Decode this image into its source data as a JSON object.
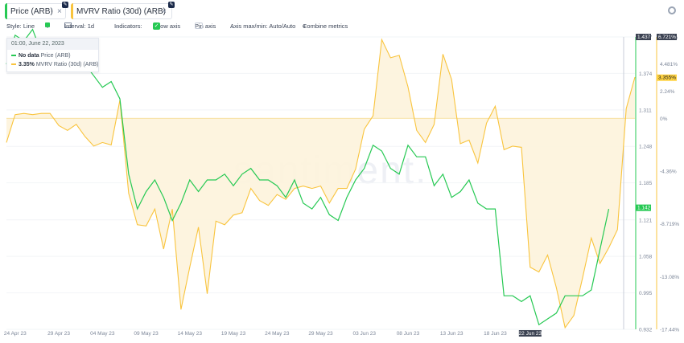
{
  "tabs": [
    {
      "label": "Price (ARB)",
      "accent": "#26c953",
      "dots": "⋮",
      "close": "×"
    },
    {
      "label": "MVRV Ratio (30d) (ARB)",
      "accent": "#f9c43d",
      "dots": "⋮",
      "close": "×"
    }
  ],
  "toolbar": {
    "style_label": "Style: Line",
    "interval_label": "Interval: 1d",
    "indicators_label": "Indicators:",
    "show_axis_label": "Show axis",
    "pin_axis_label": "Pin axis",
    "axis_maxmin_label": "Axis max/min: Auto/Auto",
    "combine_label": "Combine metrics",
    "plus": "+",
    "chevron": "⌄",
    "check": "✓"
  },
  "tooltip": {
    "date": "01:00, June 22, 2023",
    "rows": [
      {
        "value": "No data",
        "label": "Price (ARB)",
        "color": "#26c953"
      },
      {
        "value": "3.35%",
        "label": "MVRV Ratio (30d) (ARB)",
        "color": "#f9c43d"
      }
    ]
  },
  "watermark": "santiment.",
  "colors": {
    "price": "#26c953",
    "mvrv": "#f9c43d",
    "mvrv_fill": "#fdf3dc",
    "badge_dark": "#3b4252",
    "badge_mvrv": "#ffd23f"
  },
  "chart_data": {
    "type": "line",
    "x_ticks": [
      "24 Apr 23",
      "29 Apr 23",
      "04 May 23",
      "09 May 23",
      "14 May 23",
      "19 May 23",
      "24 May 23",
      "29 May 23",
      "03 Jun 23",
      "08 Jun 23",
      "13 Jun 23",
      "18 Jun 23",
      "22 Jun 23"
    ],
    "x_start": "2023-04-23",
    "price_axis": {
      "ticks": [
        1.437,
        1.374,
        1.311,
        1.248,
        1.185,
        1.121,
        1.058,
        0.995,
        0.932
      ],
      "range": [
        0.932,
        1.437
      ],
      "last_label": "1.142"
    },
    "mvrv_axis": {
      "ticks": [
        "6.721%",
        "4.481%",
        "2.24%",
        "0%",
        "-4.36%",
        "-8.719%",
        "-13.08%",
        "-17.44%"
      ],
      "range": [
        -17.44,
        6.721
      ],
      "last_label": "3.355%"
    },
    "series": [
      {
        "name": "Price (ARB)",
        "values": [
          1.39,
          1.44,
          1.43,
          1.45,
          1.41,
          1.42,
          1.38,
          1.4,
          1.38,
          1.39,
          1.37,
          1.35,
          1.36,
          1.33,
          1.2,
          1.14,
          1.17,
          1.19,
          1.16,
          1.12,
          1.15,
          1.19,
          1.17,
          1.19,
          1.19,
          1.2,
          1.18,
          1.2,
          1.21,
          1.19,
          1.19,
          1.18,
          1.16,
          1.19,
          1.15,
          1.14,
          1.16,
          1.13,
          1.12,
          1.16,
          1.19,
          1.21,
          1.25,
          1.24,
          1.21,
          1.2,
          1.25,
          1.23,
          1.23,
          1.18,
          1.2,
          1.16,
          1.17,
          1.19,
          1.15,
          1.14,
          1.14,
          0.99,
          0.99,
          0.98,
          0.99,
          0.94,
          0.95,
          0.96,
          0.99,
          0.99,
          0.99,
          1.0,
          1.07,
          1.14
        ]
      },
      {
        "name": "MVRV Ratio (30d) (ARB)",
        "values": [
          -2.0,
          0.3,
          0.4,
          0.3,
          0.4,
          0.4,
          -0.6,
          -1.0,
          -0.5,
          -1.5,
          -2.3,
          -2.0,
          -2.2,
          1.5,
          -6.2,
          -8.8,
          -8.9,
          -7.5,
          -10.8,
          -7.5,
          -15.8,
          -12.3,
          -9.0,
          -14.5,
          -8.5,
          -8.8,
          -8.0,
          -7.8,
          -5.8,
          -6.8,
          -7.2,
          -6.3,
          -6.7,
          -5.8,
          -5.6,
          -5.8,
          -5.6,
          -7.0,
          -5.8,
          -5.8,
          -4.2,
          -0.9,
          0.2,
          6.5,
          5.0,
          5.2,
          2.6,
          -1.0,
          -2.0,
          -0.5,
          5.3,
          3.2,
          -2.1,
          -1.8,
          -3.7,
          -0.4,
          1.0,
          -2.6,
          -2.3,
          -2.4,
          -12.3,
          -12.7,
          -11.3,
          -14.0,
          -17.3,
          -16.3,
          -13.2,
          -9.9,
          -12.0,
          -10.7,
          -9.2,
          0.8,
          3.4
        ]
      }
    ]
  }
}
